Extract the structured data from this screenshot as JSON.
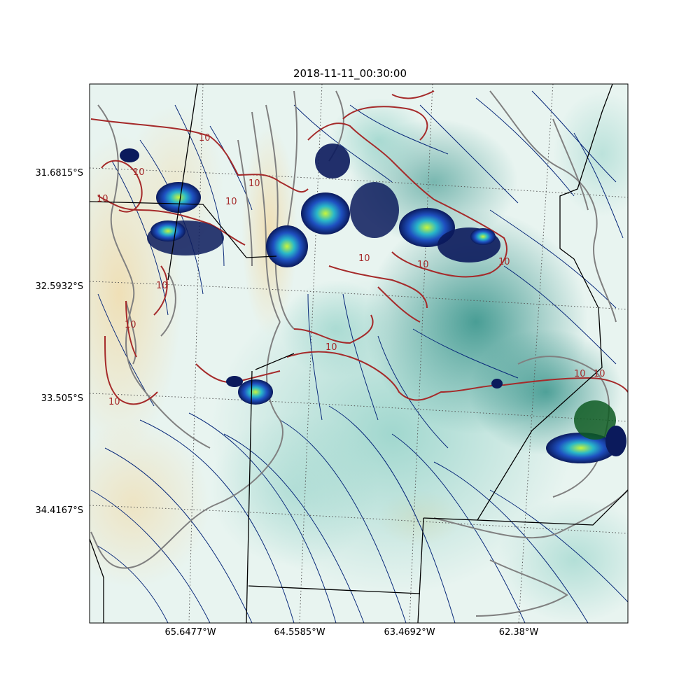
{
  "title": "2018-11-11_00:30:00",
  "axes": {
    "lat_labels": [
      "31.6815°S",
      "32.5932°S",
      "33.505°S",
      "34.4167°S"
    ],
    "lon_labels": [
      "65.6477°W",
      "64.5585°W",
      "63.4692°W",
      "62.38°W"
    ]
  },
  "contour_labels": [
    "10",
    "10",
    "10",
    "10",
    "10",
    "10",
    "10",
    "10",
    "10",
    "10",
    "10",
    "10",
    "10",
    "10"
  ],
  "colors": {
    "contour_red": "#a52a2a",
    "contour_gray": "#808080",
    "streamline": "#0a2a7a",
    "border": "#000000",
    "gridline": "#555555",
    "teal_dark": "#2f8f86",
    "teal_light": "#bfe6e0",
    "tan": "#f0ddb0",
    "precip_dark": "#0b1a5c",
    "precip_mid": "#1e6fd0",
    "precip_green": "#0e5a22",
    "precip_bright": "#c9f53a"
  }
}
